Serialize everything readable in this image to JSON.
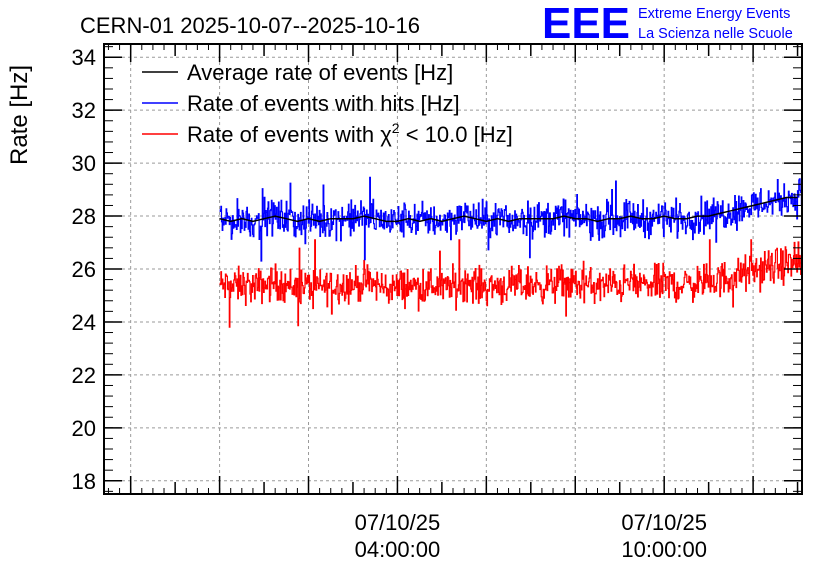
{
  "header": {
    "station_title": "CERN-01 2025-10-07--2025-10-16",
    "logo_mark": "EEE",
    "logo_line1": "Extreme Energy Events",
    "logo_line2": "La Scienza nelle Scuole"
  },
  "colors": {
    "average": "#000000",
    "hits": "#0000ff",
    "chi2": "#ff0000",
    "logo": "#0000ff",
    "grid": "#9a9a9a"
  },
  "chart_data": {
    "type": "line",
    "title": "CERN-01 2025-10-07--2025-10-16",
    "xlabel": "",
    "ylabel": "Rate [Hz]",
    "x_unit": "hours since 07/10/25 00:00",
    "xlim": [
      -2.6,
      13.1
    ],
    "ylim": [
      17.5,
      34.5
    ],
    "yticks": [
      18,
      20,
      22,
      24,
      26,
      28,
      30,
      32,
      34
    ],
    "xticks": [
      {
        "x": 4,
        "date": "07/10/25",
        "time": "04:00:00"
      },
      {
        "x": 10,
        "date": "07/10/25",
        "time": "10:00:00"
      }
    ],
    "grid": true,
    "legend_position": "top-left",
    "legend": [
      {
        "name": "Average rate of events [Hz]",
        "series": "average"
      },
      {
        "name": "Rate of events with hits [Hz]",
        "series": "hits"
      },
      {
        "name_prefix": "Rate of events with ",
        "name_symbol": "χ",
        "name_sup": "2",
        "name_suffix": " < 10.0 [Hz]",
        "series": "chi2"
      }
    ],
    "series": [
      {
        "name": "Average rate of events [Hz]",
        "key": "average",
        "x_start": 0.0,
        "x_end": 13.1,
        "sample_step": 0.25,
        "values": [
          27.9,
          27.8,
          27.9,
          27.8,
          27.9,
          28.0,
          27.9,
          27.8,
          27.9,
          27.8,
          27.9,
          27.9,
          27.9,
          28.0,
          27.9,
          27.8,
          27.8,
          27.9,
          27.8,
          27.9,
          27.8,
          27.9,
          28.0,
          27.9,
          27.8,
          27.9,
          27.8,
          27.9,
          27.9,
          27.9,
          27.9,
          28.0,
          27.9,
          27.9,
          27.8,
          27.9,
          27.9,
          28.0,
          27.9,
          27.9,
          28.0,
          27.9,
          27.9,
          28.0,
          28.0,
          28.1,
          28.2,
          28.3,
          28.4,
          28.5,
          28.6,
          28.7,
          28.7
        ]
      },
      {
        "name": "Rate of events with hits [Hz]",
        "key": "hits",
        "x_start": 0.0,
        "x_end": 13.1,
        "base": 27.9,
        "noise_amplitude": 0.55,
        "min": 26.3,
        "max": 30.0
      },
      {
        "name": "Rate of events with χ2 < 10.0 [Hz]",
        "key": "chi2",
        "x_start": 0.0,
        "x_end": 13.1,
        "base": 25.4,
        "noise_amplitude": 0.55,
        "min": 23.0,
        "max": 27.1
      }
    ]
  }
}
